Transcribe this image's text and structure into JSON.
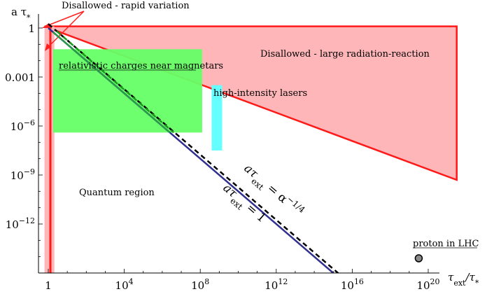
{
  "chart_data": {
    "type": "area",
    "xlabel_base": "τ",
    "xlabel_sub": "ext",
    "xlabel_rest": "/τ",
    "xlabel_star": "*",
    "ylabel_base": "a  τ",
    "ylabel_star": "*",
    "x_log_range": [
      0,
      20
    ],
    "y_log_range": [
      -15,
      0.3
    ],
    "x_ticks": [
      {
        "exp": 0,
        "label": "1",
        "sup": ""
      },
      {
        "exp": 4,
        "label": "10",
        "sup": "4"
      },
      {
        "exp": 8,
        "label": "10",
        "sup": "8"
      },
      {
        "exp": 12,
        "label": "10",
        "sup": "12"
      },
      {
        "exp": 16,
        "label": "10",
        "sup": "16"
      },
      {
        "exp": 20,
        "label": "10",
        "sup": "20"
      }
    ],
    "y_ticks": [
      {
        "exp": 0,
        "label": "1",
        "sup": ""
      },
      {
        "exp": -3,
        "label": "0.001",
        "sup": ""
      },
      {
        "exp": -6,
        "label": "10",
        "sup": "−6"
      },
      {
        "exp": -9,
        "label": "10",
        "sup": "−9"
      },
      {
        "exp": -12,
        "label": "10",
        "sup": "−12"
      }
    ],
    "regions": {
      "large_rr": {
        "label": "Disallowed - large radiation-reaction",
        "color": "#ffb6b8",
        "edge": "#ff1a1a",
        "polygon_log": [
          [
            -0.2,
            0.1
          ],
          [
            21.5,
            0.1
          ],
          [
            21.5,
            -9.3
          ]
        ]
      },
      "rapid": {
        "label": "Disallowed - rapid variation",
        "color": "#ffb6b8",
        "edge": "#ff1a1a",
        "x_log_range": [
          -0.2,
          0.1
        ]
      },
      "magnetars": {
        "label": "relativistic charges near magnetars",
        "color": "#66ff66",
        "x_log_range": [
          0.25,
          8.1
        ],
        "y_log_range": [
          -6.4,
          -1.3
        ]
      },
      "lasers": {
        "label": "high-intensity lasers",
        "color": "#66ffff",
        "x_log_range": [
          8.6,
          9.15
        ],
        "y_log_range": [
          -7.5,
          -3.5
        ]
      },
      "quantum": {
        "label": "Quantum region"
      },
      "lhc": {
        "label": "proton in LHC",
        "x_log": 19.5,
        "y_log": -14.1
      }
    },
    "series": [
      {
        "name": "aτext = 1",
        "label_main": "aτ",
        "label_sub": "ext",
        "label_rest": " = 1",
        "color": "#303090",
        "dash": false,
        "log_points": [
          [
            0,
            0
          ],
          [
            16.3,
            -16.3
          ]
        ]
      },
      {
        "name": "aτext = α−1/4",
        "label_main": "aτ",
        "label_sub": "ext",
        "label_rest": " = α",
        "label_sup": "−1/4",
        "color": "#000000",
        "dash": true,
        "log_points": [
          [
            0,
            0.25
          ],
          [
            16.9,
            -16.65
          ]
        ]
      }
    ]
  }
}
